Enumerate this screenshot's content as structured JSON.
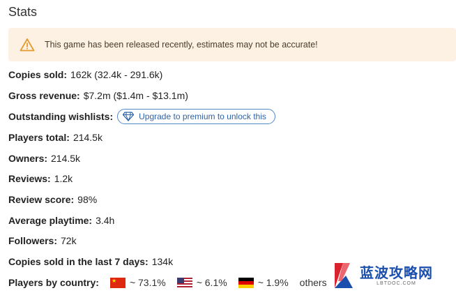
{
  "section": {
    "title": "Stats"
  },
  "warning": {
    "text": "This game has been released recently, estimates may not be accurate!",
    "icon": "warning-triangle-icon"
  },
  "stats": {
    "copies_sold": {
      "label": "Copies sold:",
      "value": "162k (32.4k - 291.6k)"
    },
    "gross_revenue": {
      "label": "Gross revenue:",
      "value": "$7.2m ($1.4m - $13.1m)"
    },
    "outstanding_wishlists": {
      "label": "Outstanding wishlists:",
      "cta": "Upgrade to premium to unlock this",
      "cta_icon": "diamond-icon"
    },
    "players_total": {
      "label": "Players total:",
      "value": "214.5k"
    },
    "owners": {
      "label": "Owners:",
      "value": "214.5k"
    },
    "reviews": {
      "label": "Reviews:",
      "value": "1.2k"
    },
    "review_score": {
      "label": "Review score:",
      "value": "98%"
    },
    "average_playtime": {
      "label": "Average playtime:",
      "value": "3.4h"
    },
    "followers": {
      "label": "Followers:",
      "value": "72k"
    },
    "copies_last_7_days": {
      "label": "Copies sold in the last 7 days:",
      "value": "134k"
    },
    "players_by_country": {
      "label": "Players by country:",
      "countries": [
        {
          "flag": "china-flag-icon",
          "value": "~ 73.1%"
        },
        {
          "flag": "usa-flag-icon",
          "value": "~ 6.1%"
        },
        {
          "flag": "germany-flag-icon",
          "value": "~ 1.9%"
        }
      ],
      "others": "others"
    }
  },
  "watermark": {
    "main": "蓝波攻略网",
    "sub": "LBTDOC.COM"
  },
  "colors": {
    "warning_bg": "#fdf1e4",
    "warning_icon": "#e39b2e",
    "pill_border": "#4f86c6",
    "pill_text": "#2f63a8",
    "watermark": "#1b4fae"
  }
}
